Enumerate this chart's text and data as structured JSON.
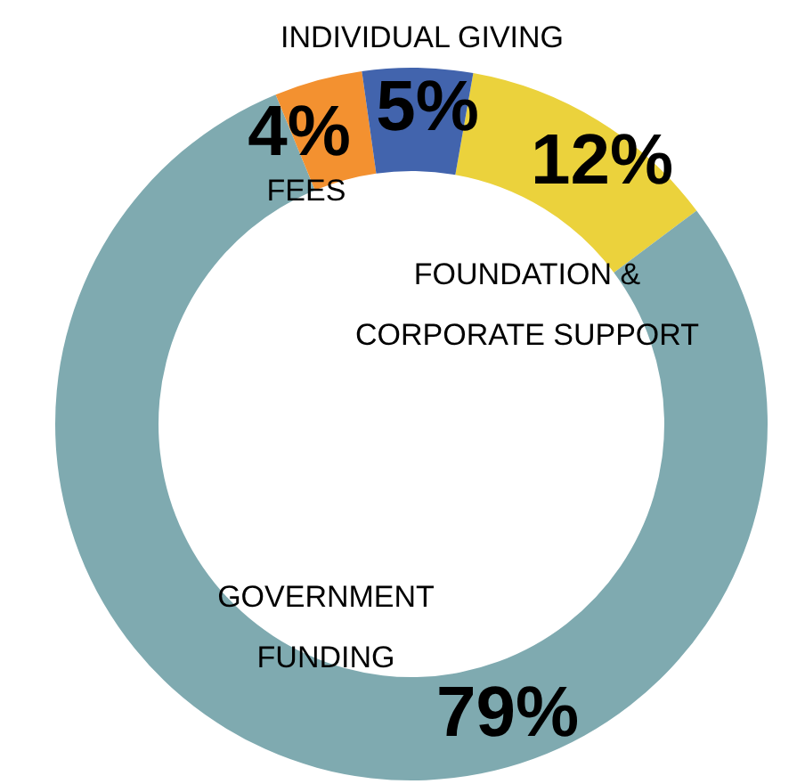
{
  "chart_data": {
    "type": "donut",
    "categories": [
      "FOUNDATION & CORPORATE SUPPORT",
      "GOVERNMENT FUNDING",
      "FEES",
      "INDIVIDUAL GIVING"
    ],
    "values": [
      12,
      79,
      4,
      5
    ],
    "colors": [
      "#ebd23c",
      "#7faab0",
      "#f39130",
      "#4264ad"
    ],
    "value_labels": [
      "12%",
      "79%",
      "4%",
      "5%"
    ],
    "legend": false
  }
}
